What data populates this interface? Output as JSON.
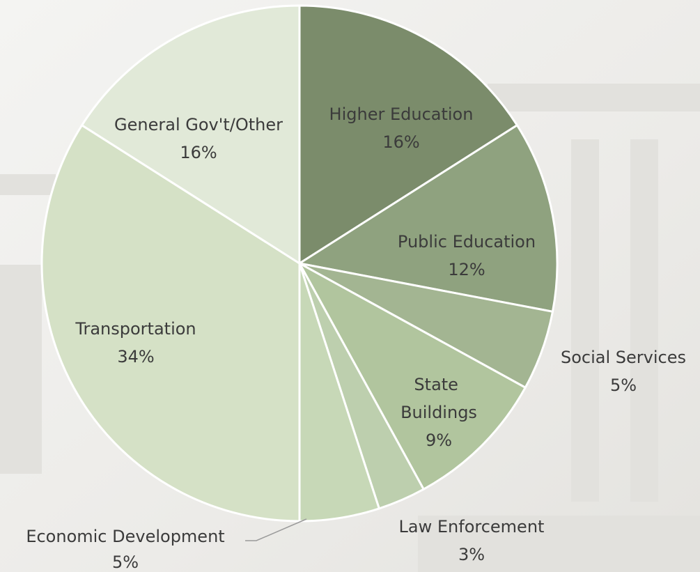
{
  "chart_data": {
    "type": "pie",
    "categories": [
      "Higher Education",
      "Public Education",
      "Social Services",
      "State Buildings",
      "Law Enforcement",
      "Economic Development",
      "Transportation",
      "General Gov't/Other"
    ],
    "values": [
      16,
      12,
      5,
      9,
      3,
      5,
      34,
      16
    ],
    "value_labels": [
      "16%",
      "12%",
      "5%",
      "9%",
      "3%",
      "5%",
      "34%",
      "16%"
    ],
    "colors": [
      "#7b8c6b",
      "#8fa27f",
      "#a3b592",
      "#b1c59e",
      "#bdcfae",
      "#c7d8b7",
      "#d5e1c6",
      "#e1e9d8"
    ]
  }
}
